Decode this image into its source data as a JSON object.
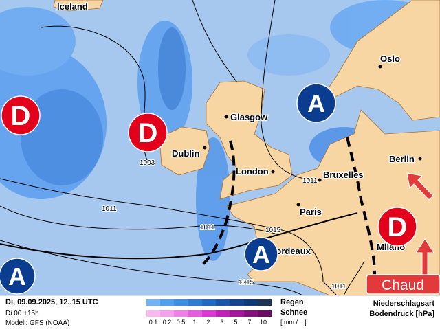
{
  "map": {
    "cities": [
      {
        "name": "Iceland"
      },
      {
        "name": "Glasgow"
      },
      {
        "name": "Dublin"
      },
      {
        "name": "London"
      },
      {
        "name": "Paris"
      },
      {
        "name": "Bruxelles"
      },
      {
        "name": "Berlin"
      },
      {
        "name": "Oslo"
      },
      {
        "name": "Milano"
      },
      {
        "name": "Bordeaux"
      }
    ],
    "isobar_labels": [
      "1003",
      "1011",
      "1011",
      "1015",
      "1011",
      "1015",
      "1011"
    ],
    "pressure_centers": [
      {
        "type": "low",
        "label": "D",
        "color": "#e2001a"
      },
      {
        "type": "low",
        "label": "D",
        "color": "#e2001a"
      },
      {
        "type": "low",
        "label": "D",
        "color": "#e2001a"
      },
      {
        "type": "high",
        "label": "A",
        "color": "#0a3d8f"
      },
      {
        "type": "high",
        "label": "A",
        "color": "#0a3d8f"
      },
      {
        "type": "high",
        "label": "A",
        "color": "#0a3d8f"
      }
    ],
    "badge": {
      "label": "Chaud",
      "color": "#e2393a"
    },
    "colors": {
      "sea": "#a7c8ee",
      "land": "#f7d6a3",
      "front": "#000000"
    }
  },
  "footer": {
    "datetime": "Di, 09.09.2025, 12..15 UTC",
    "run": "Di 00 +15h",
    "model": "Modell: GFS (NOAA)",
    "legend_rain": "Regen",
    "legend_snow": "Schnee",
    "unit": "[ mm / h ]",
    "ticks": [
      "0.1",
      "0.2",
      "0.5",
      "1",
      "2",
      "3",
      "5",
      "7",
      "10"
    ],
    "rain_colors": [
      "#6fb4f8",
      "#4fa0f0",
      "#3a8ee6",
      "#2a7cd8",
      "#1f6ac6",
      "#1856ad",
      "#124692",
      "#0e3a7a",
      "#1c3556"
    ],
    "snow_colors": [
      "#f9b8f0",
      "#f4a0ec",
      "#ef7ee6",
      "#e85adf",
      "#df36d6",
      "#c41fba",
      "#a5169d",
      "#84107e",
      "#6a0c66"
    ],
    "title_right_1": "Niederschlagsart",
    "title_right_2": "Bodendruck [hPa]"
  }
}
